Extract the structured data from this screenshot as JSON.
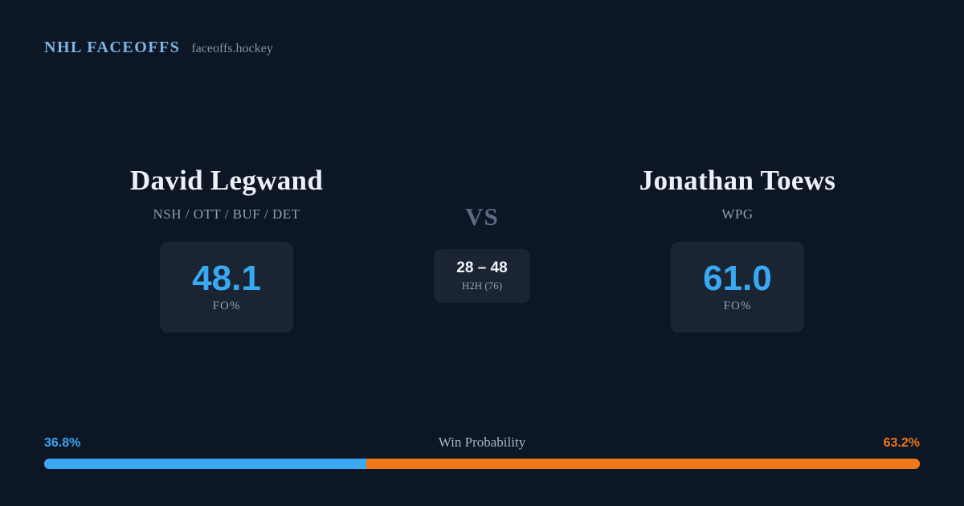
{
  "header": {
    "brand": "NHL FACEOFFS",
    "site": "faceoffs.hockey"
  },
  "left_player": {
    "name": "David Legwand",
    "teams": "NSH / OTT / BUF / DET",
    "fo_value": "48.1",
    "fo_label": "FO%"
  },
  "right_player": {
    "name": "Jonathan Toews",
    "teams": "WPG",
    "fo_value": "61.0",
    "fo_label": "FO%"
  },
  "matchup": {
    "vs_label": "VS",
    "h2h_score": "28 – 48",
    "h2h_label": "H2H (76)"
  },
  "win_probability": {
    "title": "Win Probability",
    "left_pct": "36.8%",
    "right_pct": "63.2%",
    "left_width": "36.8%",
    "right_width": "63.2%"
  },
  "colors": {
    "background": "#0d1624",
    "card": "#1a2433",
    "accent_blue": "#38a9f2",
    "accent_orange": "#f0791c",
    "title": "#ecf1f8",
    "muted": "#939fb1",
    "brand_blue": "#7db6e4",
    "vs_gray": "#5c6b81"
  }
}
